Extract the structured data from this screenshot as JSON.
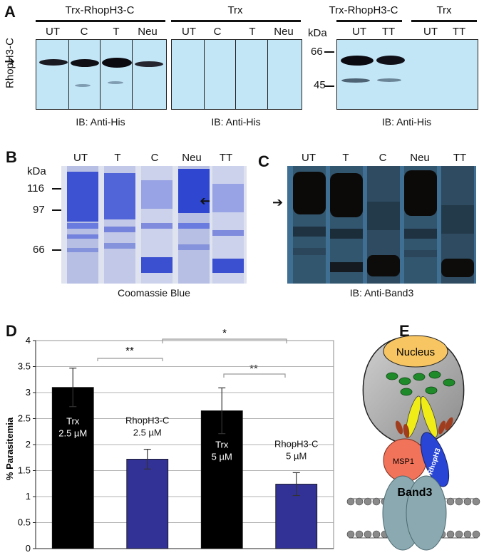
{
  "panel_a": {
    "label": "A",
    "y_label": "RhopH3-C",
    "group1_title": "Trx-RhopH3-C",
    "group1_lanes": [
      "UT",
      "C",
      "T",
      "Neu"
    ],
    "group2_title": "Trx",
    "group2_lanes": [
      "UT",
      "C",
      "T",
      "Neu"
    ],
    "group3_title": "Trx-RhopH3-C",
    "group3_lanes": [
      "UT",
      "TT"
    ],
    "group4_title": "Trx",
    "group4_lanes": [
      "UT",
      "TT"
    ],
    "kda_label": "kDa",
    "markers": [
      "66",
      "45"
    ],
    "caption1": "IB: Anti-His",
    "caption2": "IB: Anti-His",
    "caption3": "IB: Anti-His"
  },
  "panel_b": {
    "label": "B",
    "kda_label": "kDa",
    "markers": [
      "116",
      "97",
      "66"
    ],
    "lanes": [
      "UT",
      "T",
      "C",
      "Neu",
      "TT"
    ],
    "caption": "Coomassie Blue"
  },
  "panel_c": {
    "label": "C",
    "lanes": [
      "UT",
      "T",
      "C",
      "Neu",
      "TT"
    ],
    "caption": "IB: Anti-Band3"
  },
  "panel_d": {
    "label": "D",
    "ylabel": "% Parasitemia",
    "sig1": "**",
    "sig2": "*",
    "sig3": "**",
    "chart_data": {
      "type": "bar",
      "categories": [
        "Trx 2.5 µM",
        "RhopH3-C 2.5 µM",
        "Trx 5 µM",
        "RhopH3-C 5 µM"
      ],
      "values": [
        3.1,
        1.72,
        2.65,
        1.24
      ],
      "errors": [
        0.37,
        0.19,
        0.44,
        0.22
      ],
      "colors": [
        "#000000",
        "#323296",
        "#000000",
        "#323296"
      ],
      "bar_labels": [
        [
          "Trx",
          "2.5 µM"
        ],
        [
          "RhopH3-C",
          "2.5 µM"
        ],
        [
          "Trx",
          "5 µM"
        ],
        [
          "RhopH3-C",
          "5 µM"
        ]
      ],
      "label_positions": [
        "inside",
        "above",
        "inside",
        "above"
      ],
      "ylim": [
        0,
        4
      ],
      "yticks": [
        0,
        0.5,
        1,
        1.5,
        2,
        2.5,
        3,
        3.5,
        4
      ],
      "xlabel": "",
      "ylabel": "% Parasitemia",
      "grid": true
    }
  },
  "panel_e": {
    "label": "E",
    "nucleus": "Nucleus",
    "msp1": "MSP1",
    "rhoph3": "RhopH3",
    "band3": "Band3"
  }
}
